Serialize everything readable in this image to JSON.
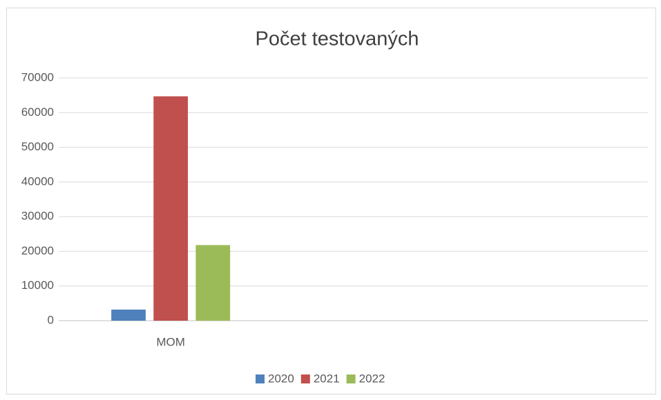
{
  "chart_data": {
    "type": "bar",
    "title": "Počet testovaných",
    "categories": [
      "MOM",
      null,
      null
    ],
    "series": [
      {
        "name": "2020",
        "color": "#4f81bd",
        "values": [
          3200,
          null,
          null
        ]
      },
      {
        "name": "2021",
        "color": "#c0504d",
        "values": [
          64700,
          null,
          null
        ]
      },
      {
        "name": "2022",
        "color": "#9bbb59",
        "values": [
          21800,
          null,
          null
        ]
      }
    ],
    "ylim": [
      0,
      70000
    ],
    "yticks": [
      0,
      10000,
      20000,
      30000,
      40000,
      50000,
      60000,
      70000
    ],
    "grid": true,
    "legend": "bottom"
  }
}
